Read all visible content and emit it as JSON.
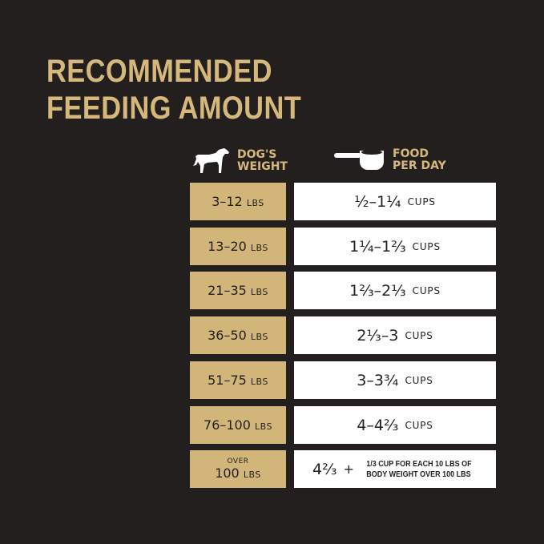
{
  "title": {
    "line1": "RECOMMENDED",
    "line2": "FEEDING AMOUNT"
  },
  "headers": {
    "weight": {
      "icon": "dog-icon",
      "line1": "DOG'S",
      "line2": "WEIGHT"
    },
    "food": {
      "icon": "measuring-cup-icon",
      "line1": "FOOD",
      "line2": "PER DAY"
    }
  },
  "rows": [
    {
      "weight": "3–12",
      "unit": "LBS",
      "amount": "½–1¼",
      "amount_unit": "CUPS"
    },
    {
      "weight": "13–20",
      "unit": "LBS",
      "amount": "1¼–1⅔",
      "amount_unit": "CUPS"
    },
    {
      "weight": "21–35",
      "unit": "LBS",
      "amount": "1⅔–2⅓",
      "amount_unit": "CUPS"
    },
    {
      "weight": "36–50",
      "unit": "LBS",
      "amount": "2⅓–3",
      "amount_unit": "CUPS"
    },
    {
      "weight": "51–75",
      "unit": "LBS",
      "amount": "3–3¾",
      "amount_unit": "CUPS"
    },
    {
      "weight": "76–100",
      "unit": "LBS",
      "amount": "4–4⅔",
      "amount_unit": "CUPS"
    }
  ],
  "last_row": {
    "prefix": "OVER",
    "weight": "100",
    "unit": "LBS",
    "amount": "4⅔",
    "plus": "+",
    "note_line1": "1/3 CUP FOR EACH 10 LBS OF",
    "note_line2": "BODY WEIGHT OVER 100 LBS"
  },
  "colors": {
    "background": "#231f1e",
    "gold": "#d2b679",
    "white": "#ffffff"
  }
}
